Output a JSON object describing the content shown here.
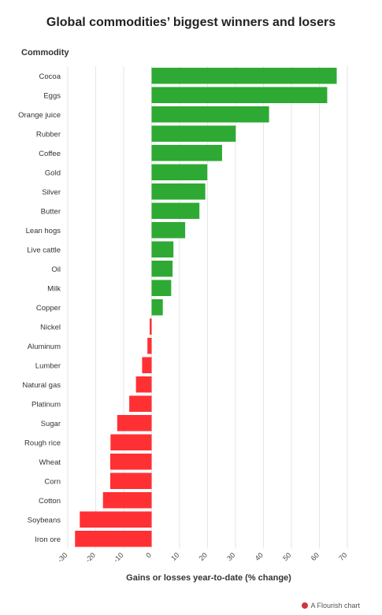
{
  "chart_data": {
    "type": "bar",
    "orientation": "horizontal",
    "title": "Global commodities’ biggest winners and losers",
    "ylabel": "Commodity",
    "xlabel": "Gains or losses year-to-date (% change)",
    "xlim": [
      -30,
      70
    ],
    "xticks": [
      "-30",
      "-20",
      "-10",
      "0",
      "10",
      "20",
      "30",
      "40",
      "50",
      "60",
      "70"
    ],
    "grid": true,
    "colors": {
      "positive": "#2eaa34",
      "negative": "#ff3034"
    },
    "categories": [
      "Cocoa",
      "Eggs",
      "Orange juice",
      "Rubber",
      "Coffee",
      "Gold",
      "Silver",
      "Butter",
      "Lean hogs",
      "Live cattle",
      "Oil",
      "Milk",
      "Copper",
      "Nickel",
      "Aluminum",
      "Lumber",
      "Natural gas",
      "Platinum",
      "Sugar",
      "Rough rice",
      "Wheat",
      "Corn",
      "Cotton",
      "Soybeans",
      "Iron ore"
    ],
    "values": [
      66.2,
      62.8,
      42.0,
      30.1,
      25.2,
      19.9,
      19.2,
      17.1,
      12.0,
      7.8,
      7.5,
      7.0,
      4.0,
      -0.7,
      -1.5,
      -3.4,
      -5.6,
      -8.0,
      -12.3,
      -14.7,
      -14.8,
      -14.8,
      -17.4,
      -25.7,
      -27.4
    ]
  },
  "credit": {
    "label": "A Flourish chart"
  }
}
